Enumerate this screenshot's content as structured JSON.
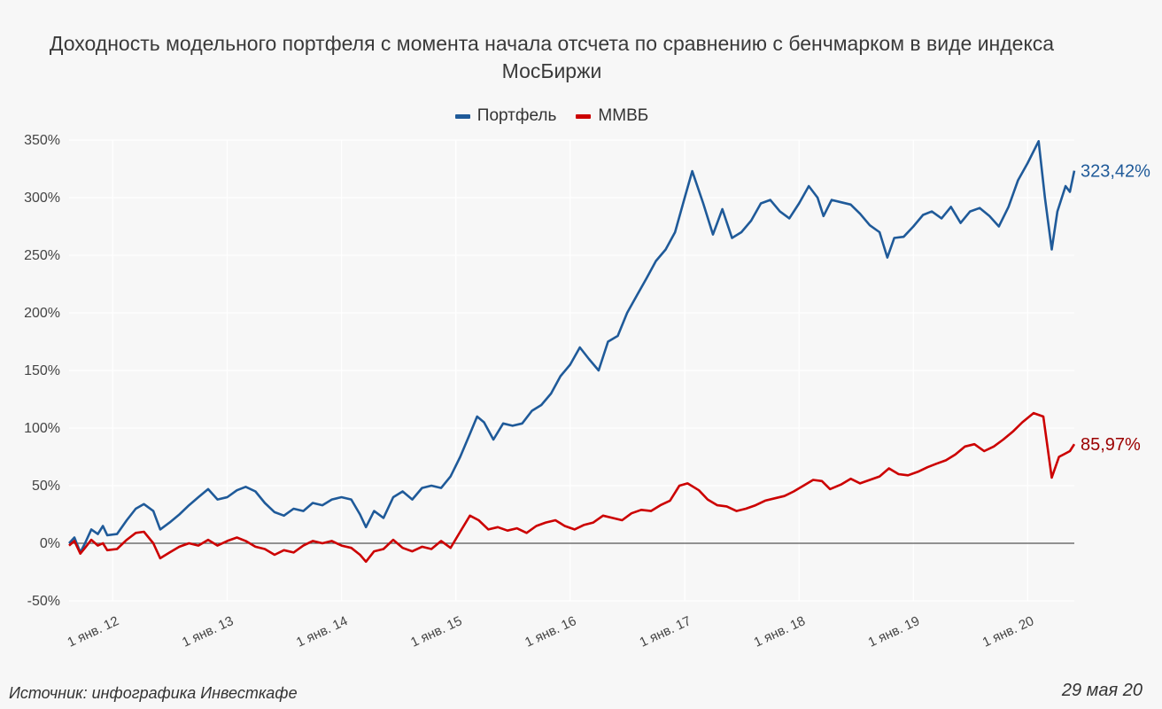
{
  "title": "Доходность модельного портфеля с момента начала отсчета по сравнению с бенчмарком в виде индекса МосБиржи",
  "source": "Источник: инфографика Инвесткафе",
  "date": "29 мая 20",
  "colors": {
    "portfolio": "#1f5a99",
    "index": "#cc0000",
    "end_label_index": "#9b0000"
  },
  "chart_data": {
    "type": "line",
    "title": "Доходность модельного портфеля с момента начала отсчета по сравнению с бенчмарком в виде индекса МосБиржи",
    "xlabel": "",
    "ylabel": "",
    "ylim": [
      -50,
      350
    ],
    "xlim": [
      "2011-08-15",
      "2020-05-29"
    ],
    "y_ticks": [
      "-50%",
      "0%",
      "50%",
      "100%",
      "150%",
      "200%",
      "250%",
      "300%",
      "350%"
    ],
    "x_ticks": [
      {
        "date": "2012-01-01",
        "label": "1 янв. 12"
      },
      {
        "date": "2013-01-01",
        "label": "1 янв. 13"
      },
      {
        "date": "2014-01-01",
        "label": "1 янв. 14"
      },
      {
        "date": "2015-01-01",
        "label": "1 янв. 15"
      },
      {
        "date": "2016-01-01",
        "label": "1 янв. 16"
      },
      {
        "date": "2017-01-01",
        "label": "1 янв. 17"
      },
      {
        "date": "2018-01-01",
        "label": "1 янв. 18"
      },
      {
        "date": "2019-01-01",
        "label": "1 янв. 19"
      },
      {
        "date": "2020-01-01",
        "label": "1 янв. 20"
      }
    ],
    "grid": true,
    "legend": "top-center",
    "series": [
      {
        "name": "Портфель",
        "end_label": "323,42%",
        "points": [
          [
            "2011-08-15",
            0
          ],
          [
            "2011-09-01",
            5
          ],
          [
            "2011-09-20",
            -8
          ],
          [
            "2011-10-05",
            0
          ],
          [
            "2011-10-25",
            12
          ],
          [
            "2011-11-15",
            8
          ],
          [
            "2011-12-01",
            15
          ],
          [
            "2011-12-15",
            7
          ],
          [
            "2012-01-15",
            8
          ],
          [
            "2012-02-15",
            20
          ],
          [
            "2012-03-15",
            30
          ],
          [
            "2012-04-10",
            34
          ],
          [
            "2012-05-10",
            28
          ],
          [
            "2012-06-01",
            12
          ],
          [
            "2012-07-01",
            18
          ],
          [
            "2012-08-01",
            25
          ],
          [
            "2012-09-01",
            33
          ],
          [
            "2012-10-01",
            40
          ],
          [
            "2012-11-01",
            47
          ],
          [
            "2012-12-01",
            38
          ],
          [
            "2013-01-01",
            40
          ],
          [
            "2013-02-01",
            46
          ],
          [
            "2013-03-01",
            49
          ],
          [
            "2013-04-01",
            45
          ],
          [
            "2013-05-01",
            35
          ],
          [
            "2013-06-01",
            27
          ],
          [
            "2013-07-01",
            24
          ],
          [
            "2013-08-01",
            30
          ],
          [
            "2013-09-01",
            28
          ],
          [
            "2013-10-01",
            35
          ],
          [
            "2013-11-01",
            33
          ],
          [
            "2013-12-01",
            38
          ],
          [
            "2014-01-01",
            40
          ],
          [
            "2014-02-01",
            38
          ],
          [
            "2014-03-01",
            25
          ],
          [
            "2014-03-20",
            14
          ],
          [
            "2014-04-15",
            28
          ],
          [
            "2014-05-15",
            22
          ],
          [
            "2014-06-15",
            40
          ],
          [
            "2014-07-15",
            45
          ],
          [
            "2014-08-15",
            38
          ],
          [
            "2014-09-15",
            48
          ],
          [
            "2014-10-15",
            50
          ],
          [
            "2014-11-15",
            48
          ],
          [
            "2014-12-15",
            58
          ],
          [
            "2015-01-15",
            75
          ],
          [
            "2015-02-15",
            95
          ],
          [
            "2015-03-10",
            110
          ],
          [
            "2015-04-01",
            105
          ],
          [
            "2015-05-01",
            90
          ],
          [
            "2015-06-01",
            104
          ],
          [
            "2015-07-01",
            102
          ],
          [
            "2015-08-01",
            104
          ],
          [
            "2015-09-01",
            115
          ],
          [
            "2015-10-01",
            120
          ],
          [
            "2015-11-01",
            130
          ],
          [
            "2015-12-01",
            145
          ],
          [
            "2016-01-01",
            155
          ],
          [
            "2016-02-01",
            170
          ],
          [
            "2016-03-01",
            160
          ],
          [
            "2016-04-01",
            150
          ],
          [
            "2016-05-01",
            175
          ],
          [
            "2016-06-01",
            180
          ],
          [
            "2016-07-01",
            200
          ],
          [
            "2016-08-01",
            215
          ],
          [
            "2016-09-01",
            230
          ],
          [
            "2016-10-01",
            245
          ],
          [
            "2016-11-01",
            255
          ],
          [
            "2016-12-01",
            270
          ],
          [
            "2017-01-01",
            300
          ],
          [
            "2017-01-25",
            323
          ],
          [
            "2017-03-01",
            295
          ],
          [
            "2017-04-01",
            268
          ],
          [
            "2017-05-01",
            290
          ],
          [
            "2017-06-01",
            265
          ],
          [
            "2017-07-01",
            270
          ],
          [
            "2017-08-01",
            280
          ],
          [
            "2017-09-01",
            295
          ],
          [
            "2017-10-01",
            298
          ],
          [
            "2017-11-01",
            288
          ],
          [
            "2017-12-01",
            282
          ],
          [
            "2018-01-01",
            295
          ],
          [
            "2018-02-01",
            310
          ],
          [
            "2018-03-01",
            300
          ],
          [
            "2018-03-20",
            284
          ],
          [
            "2018-04-15",
            298
          ],
          [
            "2018-05-15",
            296
          ],
          [
            "2018-06-15",
            294
          ],
          [
            "2018-07-15",
            286
          ],
          [
            "2018-08-15",
            276
          ],
          [
            "2018-09-15",
            270
          ],
          [
            "2018-10-10",
            248
          ],
          [
            "2018-11-01",
            265
          ],
          [
            "2018-12-01",
            266
          ],
          [
            "2019-01-01",
            275
          ],
          [
            "2019-02-01",
            285
          ],
          [
            "2019-03-01",
            288
          ],
          [
            "2019-04-01",
            282
          ],
          [
            "2019-05-01",
            292
          ],
          [
            "2019-06-01",
            278
          ],
          [
            "2019-07-01",
            288
          ],
          [
            "2019-08-01",
            291
          ],
          [
            "2019-09-01",
            284
          ],
          [
            "2019-10-01",
            275
          ],
          [
            "2019-11-01",
            292
          ],
          [
            "2019-12-01",
            315
          ],
          [
            "2020-01-01",
            330
          ],
          [
            "2020-02-05",
            349
          ],
          [
            "2020-02-25",
            300
          ],
          [
            "2020-03-18",
            255
          ],
          [
            "2020-04-05",
            288
          ],
          [
            "2020-05-01",
            310
          ],
          [
            "2020-05-15",
            305
          ],
          [
            "2020-05-29",
            323.42
          ]
        ]
      },
      {
        "name": "ММВБ",
        "end_label": "85,97%",
        "points": [
          [
            "2011-08-15",
            -2
          ],
          [
            "2011-09-01",
            2
          ],
          [
            "2011-09-20",
            -9
          ],
          [
            "2011-10-05",
            -4
          ],
          [
            "2011-10-25",
            3
          ],
          [
            "2011-11-15",
            -2
          ],
          [
            "2011-12-01",
            0
          ],
          [
            "2011-12-15",
            -6
          ],
          [
            "2012-01-15",
            -5
          ],
          [
            "2012-02-15",
            3
          ],
          [
            "2012-03-15",
            9
          ],
          [
            "2012-04-10",
            10
          ],
          [
            "2012-05-10",
            0
          ],
          [
            "2012-06-01",
            -13
          ],
          [
            "2012-07-01",
            -8
          ],
          [
            "2012-08-01",
            -3
          ],
          [
            "2012-09-01",
            0
          ],
          [
            "2012-10-01",
            -2
          ],
          [
            "2012-11-01",
            3
          ],
          [
            "2012-12-01",
            -2
          ],
          [
            "2013-01-01",
            2
          ],
          [
            "2013-02-01",
            5
          ],
          [
            "2013-03-01",
            2
          ],
          [
            "2013-04-01",
            -3
          ],
          [
            "2013-05-01",
            -5
          ],
          [
            "2013-06-01",
            -10
          ],
          [
            "2013-07-01",
            -6
          ],
          [
            "2013-08-01",
            -8
          ],
          [
            "2013-09-01",
            -2
          ],
          [
            "2013-10-01",
            2
          ],
          [
            "2013-11-01",
            0
          ],
          [
            "2013-12-01",
            2
          ],
          [
            "2014-01-01",
            -2
          ],
          [
            "2014-02-01",
            -4
          ],
          [
            "2014-03-01",
            -10
          ],
          [
            "2014-03-20",
            -16
          ],
          [
            "2014-04-15",
            -7
          ],
          [
            "2014-05-15",
            -5
          ],
          [
            "2014-06-15",
            3
          ],
          [
            "2014-07-15",
            -4
          ],
          [
            "2014-08-15",
            -7
          ],
          [
            "2014-09-15",
            -3
          ],
          [
            "2014-10-15",
            -5
          ],
          [
            "2014-11-15",
            2
          ],
          [
            "2014-12-15",
            -4
          ],
          [
            "2015-01-15",
            10
          ],
          [
            "2015-02-15",
            24
          ],
          [
            "2015-03-15",
            20
          ],
          [
            "2015-04-15",
            12
          ],
          [
            "2015-05-15",
            14
          ],
          [
            "2015-06-15",
            11
          ],
          [
            "2015-07-15",
            13
          ],
          [
            "2015-08-15",
            9
          ],
          [
            "2015-09-15",
            15
          ],
          [
            "2015-10-15",
            18
          ],
          [
            "2015-11-15",
            20
          ],
          [
            "2015-12-15",
            15
          ],
          [
            "2016-01-15",
            12
          ],
          [
            "2016-02-15",
            16
          ],
          [
            "2016-03-15",
            18
          ],
          [
            "2016-04-15",
            24
          ],
          [
            "2016-05-15",
            22
          ],
          [
            "2016-06-15",
            20
          ],
          [
            "2016-07-15",
            26
          ],
          [
            "2016-08-15",
            29
          ],
          [
            "2016-09-15",
            28
          ],
          [
            "2016-10-15",
            33
          ],
          [
            "2016-11-15",
            37
          ],
          [
            "2016-12-15",
            50
          ],
          [
            "2017-01-10",
            52
          ],
          [
            "2017-02-15",
            46
          ],
          [
            "2017-03-15",
            38
          ],
          [
            "2017-04-15",
            33
          ],
          [
            "2017-05-15",
            32
          ],
          [
            "2017-06-15",
            28
          ],
          [
            "2017-07-15",
            30
          ],
          [
            "2017-08-15",
            33
          ],
          [
            "2017-09-15",
            37
          ],
          [
            "2017-10-15",
            39
          ],
          [
            "2017-11-15",
            41
          ],
          [
            "2017-12-15",
            45
          ],
          [
            "2018-01-15",
            50
          ],
          [
            "2018-02-15",
            55
          ],
          [
            "2018-03-15",
            54
          ],
          [
            "2018-04-10",
            47
          ],
          [
            "2018-05-15",
            51
          ],
          [
            "2018-06-15",
            56
          ],
          [
            "2018-07-15",
            52
          ],
          [
            "2018-08-15",
            55
          ],
          [
            "2018-09-15",
            58
          ],
          [
            "2018-10-15",
            65
          ],
          [
            "2018-11-15",
            60
          ],
          [
            "2018-12-15",
            59
          ],
          [
            "2019-01-15",
            62
          ],
          [
            "2019-02-15",
            66
          ],
          [
            "2019-03-15",
            69
          ],
          [
            "2019-04-15",
            72
          ],
          [
            "2019-05-15",
            77
          ],
          [
            "2019-06-15",
            84
          ],
          [
            "2019-07-15",
            86
          ],
          [
            "2019-08-15",
            80
          ],
          [
            "2019-09-15",
            84
          ],
          [
            "2019-10-15",
            90
          ],
          [
            "2019-11-15",
            97
          ],
          [
            "2019-12-15",
            105
          ],
          [
            "2020-01-20",
            113
          ],
          [
            "2020-02-20",
            110
          ],
          [
            "2020-03-18",
            57
          ],
          [
            "2020-04-10",
            75
          ],
          [
            "2020-05-01",
            78
          ],
          [
            "2020-05-15",
            80
          ],
          [
            "2020-05-29",
            85.97
          ]
        ]
      }
    ]
  }
}
